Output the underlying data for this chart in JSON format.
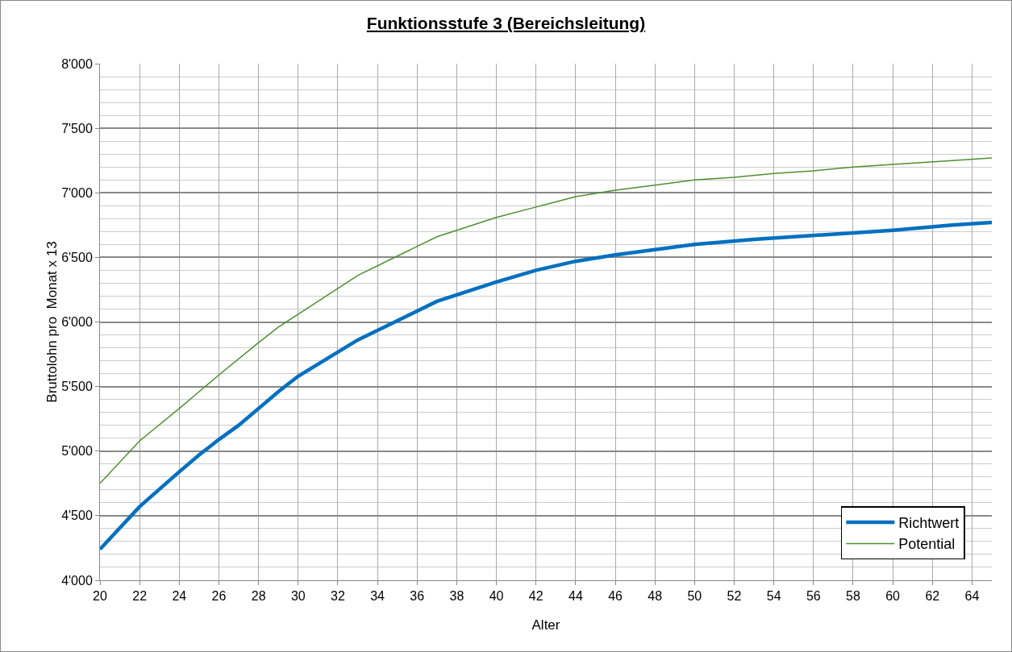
{
  "chart_data": {
    "type": "line",
    "title": "Funktionsstufe 3 (Bereichsleitung)",
    "xlabel": "Alter",
    "ylabel": "Bruttolohn pro  Monat x 13",
    "xlim": [
      20,
      65
    ],
    "xticks": [
      20,
      22,
      24,
      26,
      28,
      30,
      32,
      34,
      36,
      38,
      40,
      42,
      44,
      46,
      48,
      50,
      52,
      54,
      56,
      58,
      60,
      62,
      64
    ],
    "ylim": [
      4000,
      8000
    ],
    "yticks": [
      {
        "value": 4000,
        "label": "4'000"
      },
      {
        "value": 4500,
        "label": "4'500"
      },
      {
        "value": 5000,
        "label": "5'000"
      },
      {
        "value": 5500,
        "label": "5'500"
      },
      {
        "value": 6000,
        "label": "6'000"
      },
      {
        "value": 6500,
        "label": "6'500"
      },
      {
        "value": 7000,
        "label": "7'000"
      },
      {
        "value": 7500,
        "label": "7'500"
      },
      {
        "value": 8000,
        "label": "8'000"
      }
    ],
    "grid": true,
    "legend": "bottom right",
    "marker": "none",
    "line_style": "solid",
    "series": [
      {
        "name": "Richtwert",
        "color": "#0070c0",
        "x": [
          20,
          22,
          24,
          25,
          26,
          27,
          28,
          29,
          30,
          33,
          35,
          37,
          40,
          42,
          44,
          46,
          48,
          50,
          53,
          55,
          58,
          60,
          63,
          65
        ],
        "values": [
          4240,
          4570,
          4840,
          4970,
          5090,
          5200,
          5330,
          5460,
          5580,
          5860,
          6010,
          6160,
          6310,
          6400,
          6470,
          6520,
          6560,
          6600,
          6640,
          6660,
          6690,
          6710,
          6750,
          6770
        ]
      },
      {
        "name": "Potential",
        "color": "#4e8f2f",
        "x": [
          20,
          22,
          24,
          25,
          26,
          28,
          29,
          30,
          33,
          35,
          37,
          40,
          42,
          44,
          46,
          48,
          50,
          52,
          54,
          56,
          58,
          60,
          63,
          65
        ],
        "values": [
          4750,
          5080,
          5330,
          5460,
          5590,
          5840,
          5960,
          6060,
          6360,
          6510,
          6660,
          6810,
          6890,
          6970,
          7020,
          7060,
          7100,
          7120,
          7150,
          7170,
          7200,
          7220,
          7250,
          7270
        ]
      }
    ]
  }
}
